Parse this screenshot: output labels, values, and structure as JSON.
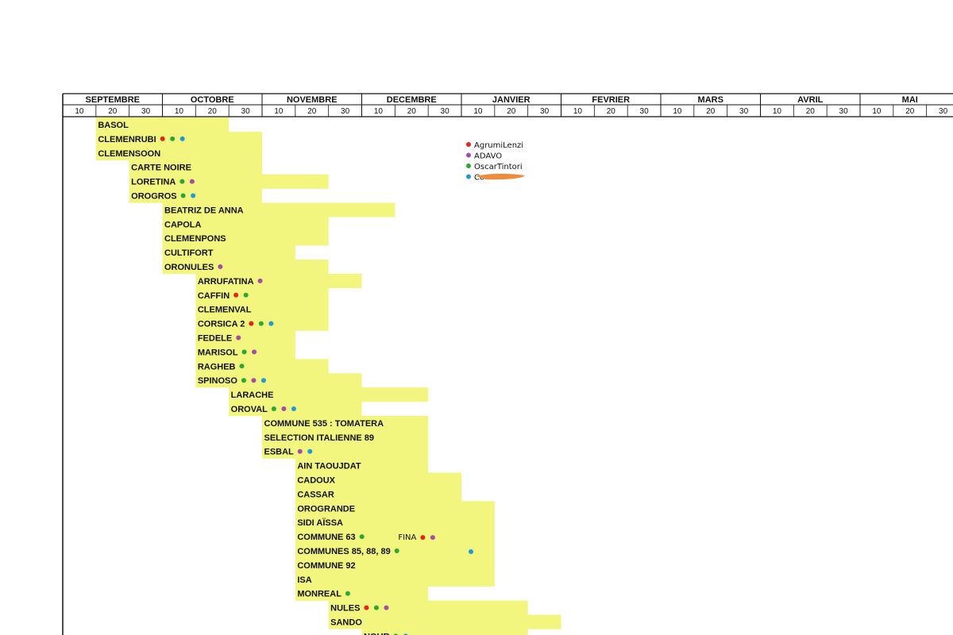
{
  "chart_data": {
    "type": "gantt",
    "months": [
      "SEPTEMBRE",
      "OCTOBRE",
      "NOVEMBRE",
      "DECEMBRE",
      "JANVIER",
      "FEVRIER",
      "MARS",
      "AVRIL",
      "MAI"
    ],
    "day_ticks": [
      "10",
      "20",
      "30"
    ],
    "legend": [
      {
        "name": "AgrumiLenzi",
        "color": "#e8211b"
      },
      {
        "name": "ADAVO",
        "color": "#a64ca6"
      },
      {
        "name": "OscarTintori",
        "color": "#2aa836"
      },
      {
        "name": "Co",
        "color": "#1e9ad6"
      }
    ],
    "bar_color": "#f2f57e",
    "varieties": [
      {
        "name": "BASOL",
        "start": 10,
        "end": 50,
        "dots": []
      },
      {
        "name": "CLEMENRUBI",
        "start": 10,
        "end": 60,
        "dots": [
          0,
          2,
          3
        ]
      },
      {
        "name": "CLEMENSOON",
        "start": 10,
        "end": 60,
        "dots": []
      },
      {
        "name": "CARTE NOIRE",
        "start": 20,
        "end": 60,
        "dots": []
      },
      {
        "name": "LORETINA",
        "start": 20,
        "end": 80,
        "dots": [
          2,
          1
        ]
      },
      {
        "name": "OROGROS",
        "start": 20,
        "end": 60,
        "dots": [
          2,
          3
        ]
      },
      {
        "name": "BEATRIZ DE ANNA",
        "start": 30,
        "end": 100,
        "dots": []
      },
      {
        "name": "CAPOLA",
        "start": 30,
        "end": 80,
        "dots": []
      },
      {
        "name": "CLEMENPONS",
        "start": 30,
        "end": 80,
        "dots": []
      },
      {
        "name": "CULTIFORT",
        "start": 30,
        "end": 70,
        "dots": []
      },
      {
        "name": "ORONULES",
        "start": 30,
        "end": 80,
        "dots": [
          1
        ]
      },
      {
        "name": "ARRUFATINA",
        "start": 40,
        "end": 90,
        "dots": [
          1
        ]
      },
      {
        "name": "CAFFIN",
        "start": 40,
        "end": 80,
        "dots": [
          0,
          2
        ]
      },
      {
        "name": "CLEMENVAL",
        "start": 40,
        "end": 80,
        "dots": []
      },
      {
        "name": "CORSICA 2",
        "start": 40,
        "end": 80,
        "dots": [
          0,
          2,
          3
        ]
      },
      {
        "name": "FEDELE",
        "start": 40,
        "end": 70,
        "dots": [
          1
        ]
      },
      {
        "name": "MARISOL",
        "start": 40,
        "end": 70,
        "dots": [
          2,
          1
        ]
      },
      {
        "name": "RAGHEB",
        "start": 40,
        "end": 80,
        "dots": [
          2
        ]
      },
      {
        "name": "SPINOSO",
        "start": 40,
        "end": 90,
        "dots": [
          2,
          1,
          3
        ]
      },
      {
        "name": "LARACHE",
        "start": 50,
        "end": 110,
        "dots": []
      },
      {
        "name": "OROVAL",
        "start": 50,
        "end": 90,
        "dots": [
          2,
          1,
          3
        ]
      },
      {
        "name": "COMMUNE 535 : TOMATERA",
        "start": 60,
        "end": 110,
        "dots": []
      },
      {
        "name": "SELECTION ITALIENNE 89",
        "start": 60,
        "end": 110,
        "dots": []
      },
      {
        "name": "ESBAL",
        "start": 60,
        "end": 110,
        "dots": [
          1,
          3
        ]
      },
      {
        "name": "AIN TAOUJDAT",
        "start": 70,
        "end": 110,
        "dots": []
      },
      {
        "name": "CADOUX",
        "start": 70,
        "end": 120,
        "dots": []
      },
      {
        "name": "CASSAR",
        "start": 70,
        "end": 120,
        "dots": []
      },
      {
        "name": "OROGRANDE",
        "start": 70,
        "end": 130,
        "dots": []
      },
      {
        "name": "SIDI AÏSSA",
        "start": 70,
        "end": 130,
        "dots": []
      },
      {
        "name": "COMMUNE 63",
        "start": 70,
        "end": 130,
        "dots": [
          2
        ]
      },
      {
        "name": "COMMUNES 85, 88, 89",
        "start": 70,
        "end": 130,
        "dots": [
          2
        ]
      },
      {
        "name": "COMMUNE 92",
        "start": 70,
        "end": 130,
        "dots": []
      },
      {
        "name": "ISA",
        "start": 70,
        "end": 130,
        "dots": []
      },
      {
        "name": "MONREAL",
        "start": 70,
        "end": 110,
        "dots": [
          2
        ]
      },
      {
        "name": "NULES",
        "start": 80,
        "end": 140,
        "dots": [
          0,
          2,
          1
        ]
      },
      {
        "name": "SANDO",
        "start": 80,
        "end": 150,
        "dots": []
      },
      {
        "name": "NOUR",
        "start": 90,
        "end": 140,
        "dots": [
          2,
          3
        ]
      }
    ],
    "annotations": [
      {
        "text": "FINA",
        "row": 29,
        "start": 100,
        "dots": [
          0,
          1
        ]
      },
      {
        "text": "",
        "row": 30,
        "start": 120,
        "dots": [
          3
        ]
      }
    ]
  }
}
